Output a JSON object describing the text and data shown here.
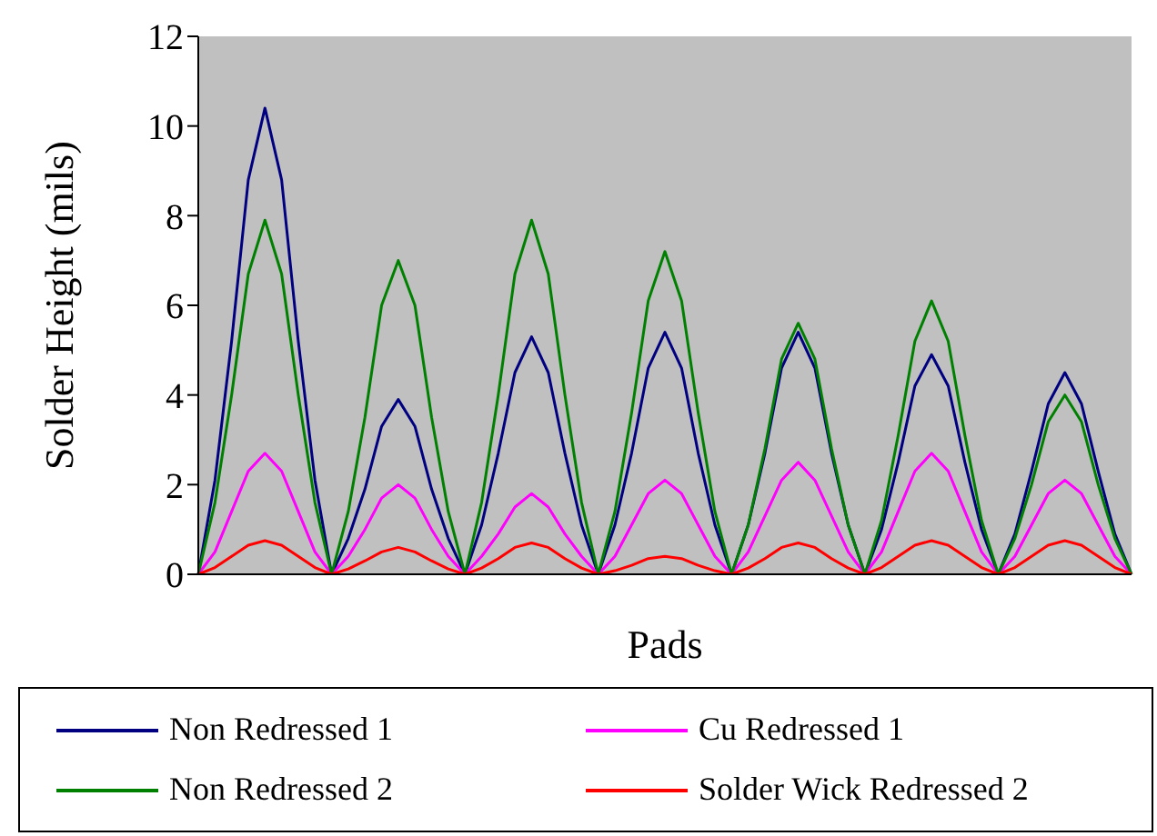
{
  "chart_data": {
    "type": "line",
    "xlabel": "Pads",
    "ylabel": "Solder Height (mils)",
    "ylim": [
      0,
      12
    ],
    "yticks": [
      0,
      2,
      4,
      6,
      8,
      10,
      12
    ],
    "tick_labels": "y",
    "grid": false,
    "legend": "bottom",
    "marker": "none",
    "line_style": "solid",
    "categories": [
      null,
      null,
      null,
      null,
      null,
      null,
      null,
      null,
      null,
      null,
      null,
      null,
      null,
      null,
      null,
      null,
      null,
      null,
      null,
      null,
      null,
      null,
      null,
      null,
      null,
      null,
      null,
      null,
      null,
      null,
      null,
      null,
      null,
      null,
      null,
      null,
      null,
      null,
      null,
      null,
      null,
      null,
      null,
      null,
      null,
      null,
      null,
      null,
      null,
      null,
      null,
      null,
      null,
      null,
      null,
      null,
      null
    ],
    "series": [
      {
        "name": "Non Redressed 1",
        "color": "#000080",
        "values": [
          0,
          2.1,
          5.2,
          8.8,
          10.4,
          8.8,
          5.2,
          2.1,
          0,
          0.8,
          1.9,
          3.3,
          3.9,
          3.3,
          1.9,
          0.8,
          0,
          1.1,
          2.7,
          4.5,
          5.3,
          4.5,
          2.7,
          1.1,
          0,
          1.1,
          2.7,
          4.6,
          5.4,
          4.6,
          2.7,
          1.1,
          0,
          1.1,
          2.7,
          4.6,
          5.4,
          4.6,
          2.7,
          1.1,
          0,
          1.0,
          2.5,
          4.2,
          4.9,
          4.2,
          2.5,
          1.0,
          0,
          0.9,
          2.3,
          3.8,
          4.5,
          3.8,
          2.3,
          0.9,
          0
        ]
      },
      {
        "name": "Cu Redressed 1",
        "color": "#ff00ff",
        "values": [
          0,
          0.5,
          1.4,
          2.3,
          2.7,
          2.3,
          1.4,
          0.5,
          0,
          0.4,
          1.0,
          1.7,
          2.0,
          1.7,
          1.0,
          0.4,
          0,
          0.4,
          0.9,
          1.5,
          1.8,
          1.5,
          0.9,
          0.4,
          0,
          0.4,
          1.1,
          1.8,
          2.1,
          1.8,
          1.1,
          0.4,
          0,
          0.5,
          1.3,
          2.1,
          2.5,
          2.1,
          1.3,
          0.5,
          0,
          0.5,
          1.4,
          2.3,
          2.7,
          2.3,
          1.4,
          0.5,
          0,
          0.4,
          1.1,
          1.8,
          2.1,
          1.8,
          1.1,
          0.4,
          0
        ]
      },
      {
        "name": "Non Redressed 2",
        "color": "#008000",
        "values": [
          0,
          1.6,
          4.0,
          6.7,
          7.9,
          6.7,
          4.0,
          1.6,
          0,
          1.4,
          3.5,
          6.0,
          7.0,
          6.0,
          3.5,
          1.4,
          0,
          1.6,
          4.0,
          6.7,
          7.9,
          6.7,
          4.0,
          1.6,
          0,
          1.4,
          3.6,
          6.1,
          7.2,
          6.1,
          3.6,
          1.4,
          0,
          1.1,
          2.8,
          4.8,
          5.6,
          4.8,
          2.8,
          1.1,
          0,
          1.2,
          3.1,
          5.2,
          6.1,
          5.2,
          3.1,
          1.2,
          0,
          0.8,
          2.0,
          3.4,
          4.0,
          3.4,
          2.0,
          0.8,
          0
        ]
      },
      {
        "name": "Solder Wick Redressed 2",
        "color": "#ff0000",
        "values": [
          0,
          0.15,
          0.4,
          0.65,
          0.75,
          0.65,
          0.4,
          0.15,
          0,
          0.12,
          0.3,
          0.5,
          0.6,
          0.5,
          0.3,
          0.12,
          0,
          0.14,
          0.35,
          0.6,
          0.7,
          0.6,
          0.35,
          0.14,
          0,
          0.08,
          0.2,
          0.35,
          0.4,
          0.35,
          0.2,
          0.08,
          0,
          0.14,
          0.35,
          0.6,
          0.7,
          0.6,
          0.35,
          0.14,
          0,
          0.15,
          0.4,
          0.65,
          0.75,
          0.65,
          0.4,
          0.15,
          0,
          0.15,
          0.4,
          0.65,
          0.75,
          0.65,
          0.4,
          0.15,
          0
        ]
      }
    ]
  }
}
